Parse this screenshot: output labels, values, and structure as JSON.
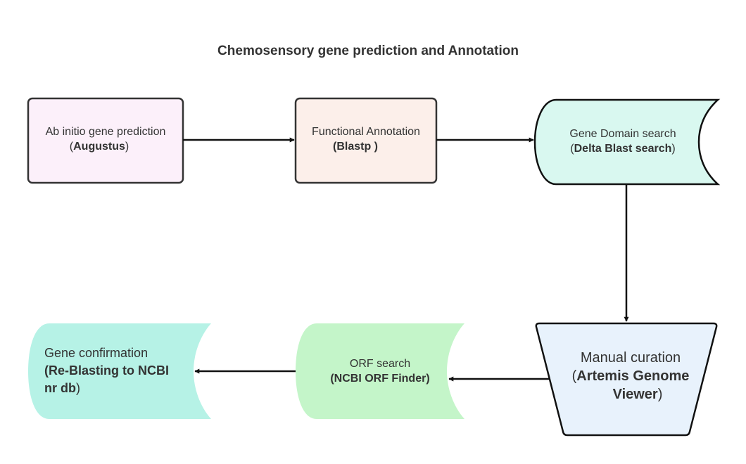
{
  "title": "Chemosensory gene prediction and Annotation",
  "nodes": {
    "ab_initio": {
      "line1": "Ab initio gene prediction",
      "paren_open": "(",
      "tool": "Augustus",
      "paren_close": ")",
      "fill": "#fcf0fa",
      "stroke": "#333333"
    },
    "functional": {
      "line1": "Functional Annotation",
      "tool": "(Blastp )",
      "fill": "#fcefea",
      "stroke": "#333333"
    },
    "domain": {
      "line1": "Gene Domain search",
      "paren_open": "(",
      "tool": "Delta Blast search",
      "paren_close": ")",
      "fill": "#d9f8f0",
      "stroke": "#111111"
    },
    "manual": {
      "line1": "Manual curation",
      "paren_open": "(",
      "tool_line1": "Artemis Genome",
      "tool_line2": "Viewer",
      "paren_close": ")",
      "fill": "#e8f2fc",
      "stroke": "#111111"
    },
    "orf": {
      "line1": "ORF search",
      "tool": "(NCBI ORF Finder)",
      "fill": "#c4f5c9"
    },
    "confirm": {
      "line1": "Gene confirmation",
      "tool_line1": "(Re-Blasting to NCBI",
      "tool_line2": "nr db",
      "paren_close": ")",
      "fill": "#b6f2e6"
    }
  },
  "edges": [
    {
      "from": "ab_initio",
      "to": "functional"
    },
    {
      "from": "functional",
      "to": "domain"
    },
    {
      "from": "domain",
      "to": "manual"
    },
    {
      "from": "manual",
      "to": "orf"
    },
    {
      "from": "orf",
      "to": "confirm"
    }
  ]
}
